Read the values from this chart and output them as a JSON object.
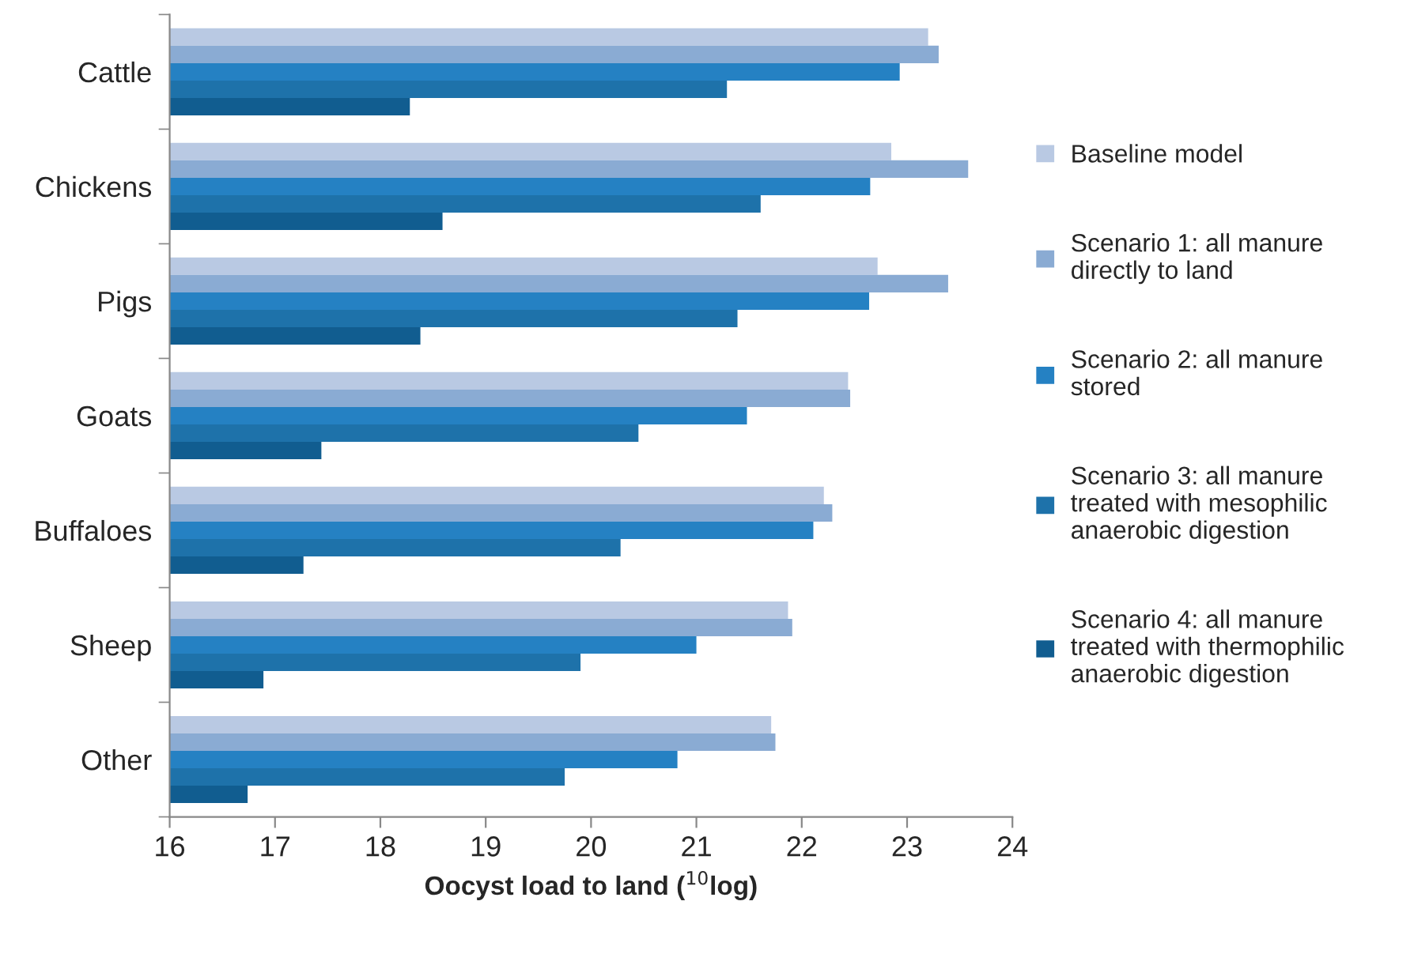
{
  "chart_data": {
    "type": "bar",
    "orientation": "horizontal",
    "categories": [
      "Cattle",
      "Chickens",
      "Pigs",
      "Goats",
      "Buffaloes",
      "Sheep",
      "Other"
    ],
    "series": [
      {
        "name": "Baseline model",
        "color": "#b9c9e3",
        "values": [
          23.2,
          22.85,
          22.72,
          22.44,
          22.21,
          21.87,
          21.71
        ]
      },
      {
        "name": "Scenario 1: all manure directly to land",
        "color": "#8aabd3",
        "values": [
          23.3,
          23.58,
          23.39,
          22.46,
          22.29,
          21.91,
          21.75
        ]
      },
      {
        "name": "Scenario 2: all manure stored",
        "color": "#2581c3",
        "values": [
          22.93,
          22.65,
          22.64,
          21.48,
          22.11,
          21.0,
          20.82
        ]
      },
      {
        "name": "Scenario 3: all manure treated with mesophilic anaerobic digestion",
        "color": "#1e72aa",
        "values": [
          21.29,
          21.61,
          21.39,
          20.45,
          20.28,
          19.9,
          19.75
        ]
      },
      {
        "name": "Scenario 4: all manure treated with thermophilic anaerobic digestion",
        "color": "#115d90",
        "values": [
          18.28,
          18.59,
          18.38,
          17.44,
          17.27,
          16.89,
          16.74
        ]
      }
    ],
    "xlabel": "Oocyst load to land ($^{10}$log)",
    "xlim": [
      16,
      24
    ],
    "xticks": [
      16,
      17,
      18,
      19,
      20,
      21,
      22,
      23,
      24
    ],
    "grid": false,
    "legend": "right"
  }
}
